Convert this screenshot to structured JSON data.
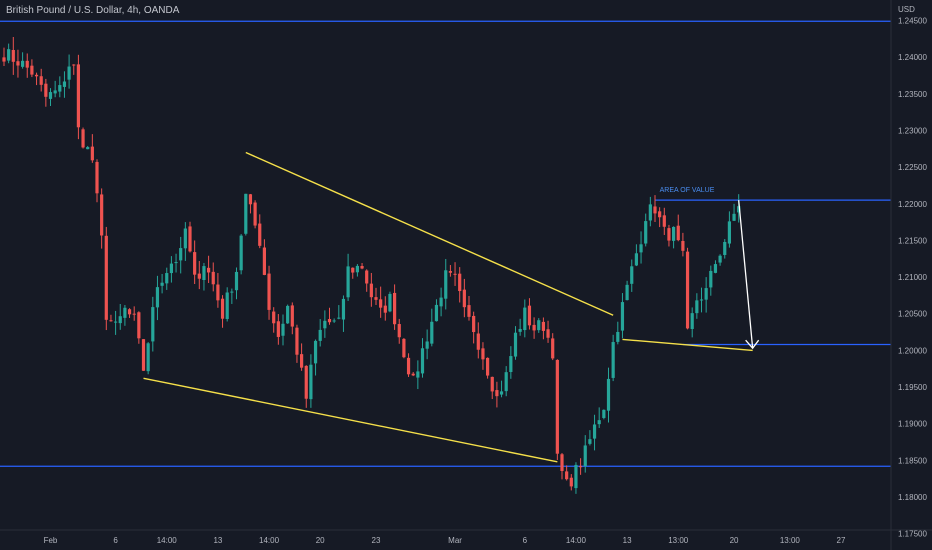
{
  "title": "British Pound / U.S. Dollar, 4h, OANDA",
  "currency_label": "USD",
  "annotation": "AREA OF VALUE",
  "colors": {
    "background": "#161a25",
    "bull": "#26a69a",
    "bear": "#ef5350",
    "level_line": "#2962ff",
    "trend_line": "#f5e04a",
    "arrow": "#ffffff",
    "text": "#b2b5be"
  },
  "chart_data": {
    "type": "candlestick",
    "title": "British Pound / U.S. Dollar, 4h, OANDA",
    "ylabel": "USD",
    "ylim": [
      1.1755,
      1.2478
    ],
    "y_ticks": [
      "1.24500",
      "1.24000",
      "1.23500",
      "1.23000",
      "1.22500",
      "1.22000",
      "1.21500",
      "1.21000",
      "1.20500",
      "1.20000",
      "1.19500",
      "1.19000",
      "1.18500",
      "1.18000",
      "1.17500"
    ],
    "y_tick_values": [
      1.245,
      1.24,
      1.235,
      1.23,
      1.225,
      1.22,
      1.215,
      1.21,
      1.205,
      1.2,
      1.195,
      1.19,
      1.185,
      1.18,
      1.175
    ],
    "x_ticks": [
      "Feb",
      "6",
      "14:00",
      "13",
      "14:00",
      "20",
      "23",
      "Mar",
      "6",
      "14:00",
      "13",
      "13:00",
      "20",
      "13:00",
      "27"
    ],
    "x_tick_bars": [
      10,
      24,
      35,
      46,
      57,
      68,
      80,
      97,
      112,
      123,
      134,
      145,
      157,
      169,
      180
    ],
    "horizontal_levels": [
      1.2449,
      1.2205,
      1.2008,
      1.1842
    ],
    "trend_lines": [
      {
        "from": [
          52,
          1.227
        ],
        "to": [
          131,
          1.2048
        ]
      },
      {
        "from": [
          30,
          1.1962
        ],
        "to": [
          119,
          1.1848
        ]
      },
      {
        "from": [
          133,
          1.2015
        ],
        "to": [
          161,
          1.2
        ]
      }
    ],
    "arrow": {
      "from": [
        158,
        1.2205
      ],
      "to": [
        161,
        1.2003
      ]
    },
    "annotation": {
      "text": "AREA OF VALUE",
      "bar": 141,
      "price": 1.2212
    },
    "price_anchors": [
      [
        0,
        1.2405
      ],
      [
        3,
        1.2395
      ],
      [
        6,
        1.238
      ],
      [
        9,
        1.2345
      ],
      [
        12,
        1.2355
      ],
      [
        14,
        1.239
      ],
      [
        15,
        1.2385
      ],
      [
        16,
        1.23
      ],
      [
        19,
        1.226
      ],
      [
        21,
        1.215
      ],
      [
        22,
        1.205
      ],
      [
        24,
        1.203
      ],
      [
        26,
        1.2055
      ],
      [
        28,
        1.204
      ],
      [
        30,
        1.1975
      ],
      [
        33,
        1.209
      ],
      [
        36,
        1.212
      ],
      [
        38,
        1.213
      ],
      [
        39,
        1.2165
      ],
      [
        41,
        1.2095
      ],
      [
        43,
        1.212
      ],
      [
        45,
        1.209
      ],
      [
        47,
        1.205
      ],
      [
        50,
        1.211
      ],
      [
        52,
        1.221
      ],
      [
        55,
        1.215
      ],
      [
        57,
        1.206
      ],
      [
        59,
        1.202
      ],
      [
        61,
        1.206
      ],
      [
        63,
        1.2
      ],
      [
        65,
        1.1935
      ],
      [
        67,
        1.201
      ],
      [
        69,
        1.204
      ],
      [
        72,
        1.2035
      ],
      [
        74,
        1.211
      ],
      [
        77,
        1.2115
      ],
      [
        79,
        1.2075
      ],
      [
        81,
        1.205
      ],
      [
        83,
        1.207
      ],
      [
        85,
        1.202
      ],
      [
        88,
        1.1955
      ],
      [
        90,
        1.2
      ],
      [
        93,
        1.206
      ],
      [
        95,
        1.21
      ],
      [
        97,
        1.2095
      ],
      [
        99,
        1.205
      ],
      [
        101,
        1.203
      ],
      [
        104,
        1.1975
      ],
      [
        106,
        1.1935
      ],
      [
        108,
        1.1965
      ],
      [
        110,
        1.202
      ],
      [
        112,
        1.205
      ],
      [
        114,
        1.203
      ],
      [
        116,
        1.2035
      ],
      [
        118,
        1.2
      ],
      [
        119,
        1.185
      ],
      [
        121,
        1.1815
      ],
      [
        123,
        1.1835
      ],
      [
        125,
        1.186
      ],
      [
        127,
        1.1895
      ],
      [
        129,
        1.1925
      ],
      [
        131,
        1.201
      ],
      [
        133,
        1.206
      ],
      [
        135,
        1.211
      ],
      [
        137,
        1.2155
      ],
      [
        138,
        1.2185
      ],
      [
        140,
        1.2195
      ],
      [
        142,
        1.216
      ],
      [
        144,
        1.216
      ],
      [
        146,
        1.2125
      ],
      [
        147,
        1.202
      ],
      [
        149,
        1.207
      ],
      [
        151,
        1.208
      ],
      [
        153,
        1.212
      ],
      [
        155,
        1.215
      ],
      [
        157,
        1.2185
      ],
      [
        158,
        1.22
      ]
    ],
    "n_bars": 186
  }
}
